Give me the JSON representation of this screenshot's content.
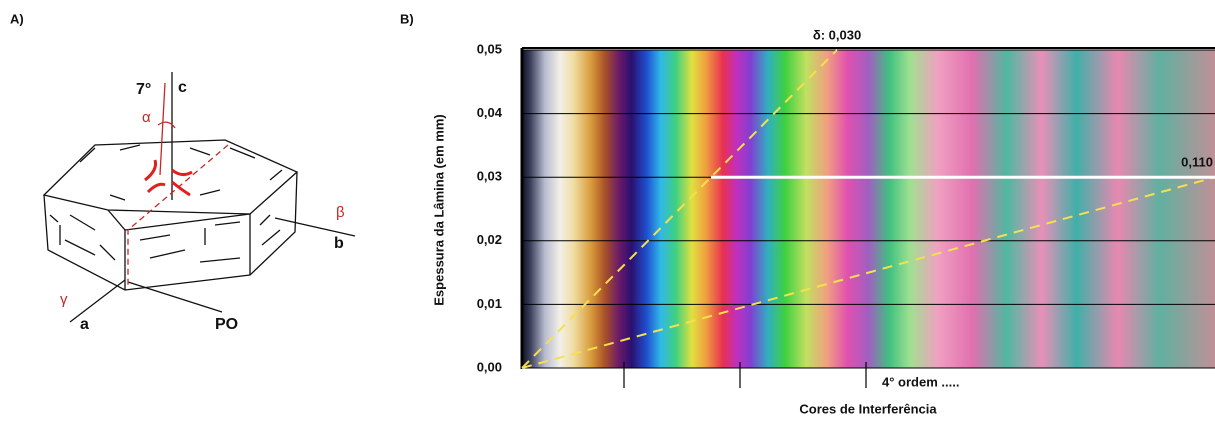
{
  "diagram": {
    "panel_label": "A)",
    "angle": "7°",
    "axis_c": "c",
    "alpha": "α",
    "beta": "β",
    "axis_b": "b",
    "gamma": "γ",
    "axis_a": "a",
    "plane": "PO"
  },
  "chart_data": {
    "type": "line",
    "panel_label": "B)",
    "y_label": "Espessura da Lâmina (em mm)",
    "x_label": "Cores de Interferência",
    "order_label": "4° ordem .....",
    "xlim": [
      0,
      3300
    ],
    "ylim": [
      0,
      0.05
    ],
    "yticks": [
      {
        "value": 0,
        "label": "0,00"
      },
      {
        "value": 0.01,
        "label": "0,01"
      },
      {
        "value": 0.02,
        "label": "0,02"
      },
      {
        "value": 0.03,
        "label": "0,03"
      },
      {
        "value": 0.04,
        "label": "0,04"
      },
      {
        "value": 0.05,
        "label": "0,05"
      }
    ],
    "grid": true,
    "series": [
      {
        "name": "δ: 0,030",
        "color": "#f5e050",
        "dashed": true,
        "x": [
          0,
          1500
        ],
        "values": [
          0,
          0.05
        ]
      },
      {
        "name": "0,110",
        "color": "#f5e050",
        "dashed": true,
        "x": [
          0,
          3300
        ],
        "values": [
          0,
          0.03
        ]
      },
      {
        "color": "#ffffff",
        "dashed": false,
        "x": [
          900,
          3300
        ],
        "values": [
          0.03,
          0.03
        ]
      }
    ]
  }
}
